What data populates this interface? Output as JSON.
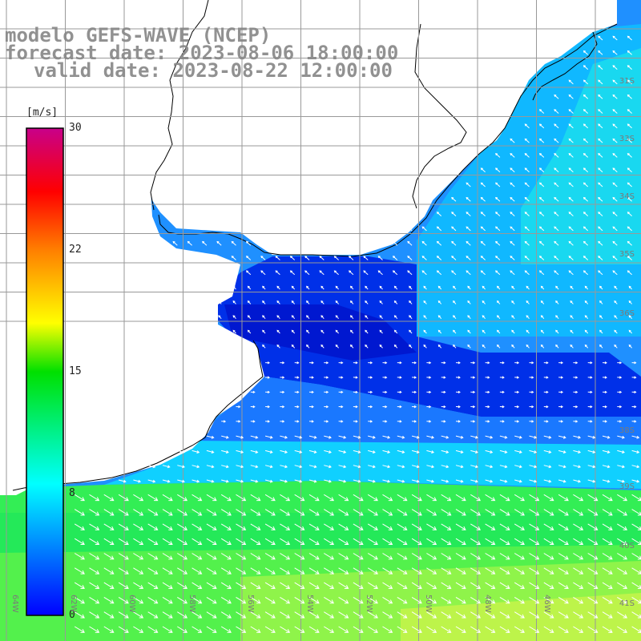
{
  "header": {
    "model": "modelo GEFS-WAVE (NCEP)",
    "forecast": "forecast date: 2023-08-06 18:00:00",
    "valid": "valid date: 2023-08-22 12:00:00"
  },
  "colorbar": {
    "unit": "[m/s]",
    "ticks": [
      "30",
      "22",
      "15",
      "8",
      "0"
    ],
    "tick_values": [
      30,
      22,
      15,
      8,
      0
    ],
    "colors": [
      "#0000ff",
      "#00a0ff",
      "#00ffff",
      "#00ff30",
      "#ffff00",
      "#ff7f00",
      "#ff0000",
      "#c8008a"
    ]
  },
  "map": {
    "lat_labels": [
      "31S",
      "33S",
      "34S",
      "35S",
      "36S",
      "38S",
      "39S",
      "40S",
      "41S"
    ],
    "lon_labels": [
      "64W",
      "62W",
      "60W",
      "58W",
      "56W",
      "54W",
      "52W",
      "50W",
      "48W",
      "46W"
    ],
    "land_color": "#ffffff",
    "grid_color": "#999999",
    "arrow_color": "#ffffff"
  }
}
